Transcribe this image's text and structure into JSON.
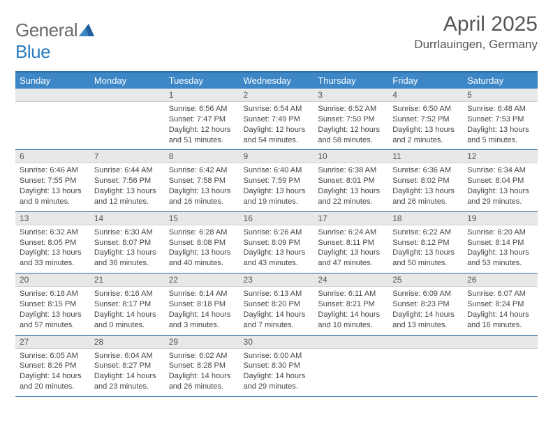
{
  "logo": {
    "word1": "General",
    "word2": "Blue"
  },
  "title": "April 2025",
  "location": "Durrlauingen, Germany",
  "colors": {
    "header_bg": "#3d87c7",
    "header_text": "#ffffff",
    "rule": "#2a6ea8",
    "dayhead_bg": "#e8e8e8",
    "body_text": "#444444",
    "logo_gray": "#6a6a6a",
    "logo_blue": "#2a7bbf",
    "page_bg": "#ffffff"
  },
  "typography": {
    "title_fontsize": 30,
    "location_fontsize": 17,
    "dayhead_fontsize": 12,
    "body_fontsize": 11,
    "header_fontsize": 13
  },
  "weekdays": [
    "Sunday",
    "Monday",
    "Tuesday",
    "Wednesday",
    "Thursday",
    "Friday",
    "Saturday"
  ],
  "weeks": [
    [
      null,
      null,
      {
        "n": "1",
        "sunrise": "6:56 AM",
        "sunset": "7:47 PM",
        "dl": "12 hours and 51 minutes."
      },
      {
        "n": "2",
        "sunrise": "6:54 AM",
        "sunset": "7:49 PM",
        "dl": "12 hours and 54 minutes."
      },
      {
        "n": "3",
        "sunrise": "6:52 AM",
        "sunset": "7:50 PM",
        "dl": "12 hours and 58 minutes."
      },
      {
        "n": "4",
        "sunrise": "6:50 AM",
        "sunset": "7:52 PM",
        "dl": "13 hours and 2 minutes."
      },
      {
        "n": "5",
        "sunrise": "6:48 AM",
        "sunset": "7:53 PM",
        "dl": "13 hours and 5 minutes."
      }
    ],
    [
      {
        "n": "6",
        "sunrise": "6:46 AM",
        "sunset": "7:55 PM",
        "dl": "13 hours and 9 minutes."
      },
      {
        "n": "7",
        "sunrise": "6:44 AM",
        "sunset": "7:56 PM",
        "dl": "13 hours and 12 minutes."
      },
      {
        "n": "8",
        "sunrise": "6:42 AM",
        "sunset": "7:58 PM",
        "dl": "13 hours and 16 minutes."
      },
      {
        "n": "9",
        "sunrise": "6:40 AM",
        "sunset": "7:59 PM",
        "dl": "13 hours and 19 minutes."
      },
      {
        "n": "10",
        "sunrise": "6:38 AM",
        "sunset": "8:01 PM",
        "dl": "13 hours and 22 minutes."
      },
      {
        "n": "11",
        "sunrise": "6:36 AM",
        "sunset": "8:02 PM",
        "dl": "13 hours and 26 minutes."
      },
      {
        "n": "12",
        "sunrise": "6:34 AM",
        "sunset": "8:04 PM",
        "dl": "13 hours and 29 minutes."
      }
    ],
    [
      {
        "n": "13",
        "sunrise": "6:32 AM",
        "sunset": "8:05 PM",
        "dl": "13 hours and 33 minutes."
      },
      {
        "n": "14",
        "sunrise": "6:30 AM",
        "sunset": "8:07 PM",
        "dl": "13 hours and 36 minutes."
      },
      {
        "n": "15",
        "sunrise": "6:28 AM",
        "sunset": "8:08 PM",
        "dl": "13 hours and 40 minutes."
      },
      {
        "n": "16",
        "sunrise": "6:26 AM",
        "sunset": "8:09 PM",
        "dl": "13 hours and 43 minutes."
      },
      {
        "n": "17",
        "sunrise": "6:24 AM",
        "sunset": "8:11 PM",
        "dl": "13 hours and 47 minutes."
      },
      {
        "n": "18",
        "sunrise": "6:22 AM",
        "sunset": "8:12 PM",
        "dl": "13 hours and 50 minutes."
      },
      {
        "n": "19",
        "sunrise": "6:20 AM",
        "sunset": "8:14 PM",
        "dl": "13 hours and 53 minutes."
      }
    ],
    [
      {
        "n": "20",
        "sunrise": "6:18 AM",
        "sunset": "8:15 PM",
        "dl": "13 hours and 57 minutes."
      },
      {
        "n": "21",
        "sunrise": "6:16 AM",
        "sunset": "8:17 PM",
        "dl": "14 hours and 0 minutes."
      },
      {
        "n": "22",
        "sunrise": "6:14 AM",
        "sunset": "8:18 PM",
        "dl": "14 hours and 3 minutes."
      },
      {
        "n": "23",
        "sunrise": "6:13 AM",
        "sunset": "8:20 PM",
        "dl": "14 hours and 7 minutes."
      },
      {
        "n": "24",
        "sunrise": "6:11 AM",
        "sunset": "8:21 PM",
        "dl": "14 hours and 10 minutes."
      },
      {
        "n": "25",
        "sunrise": "6:09 AM",
        "sunset": "8:23 PM",
        "dl": "14 hours and 13 minutes."
      },
      {
        "n": "26",
        "sunrise": "6:07 AM",
        "sunset": "8:24 PM",
        "dl": "14 hours and 16 minutes."
      }
    ],
    [
      {
        "n": "27",
        "sunrise": "6:05 AM",
        "sunset": "8:26 PM",
        "dl": "14 hours and 20 minutes."
      },
      {
        "n": "28",
        "sunrise": "6:04 AM",
        "sunset": "8:27 PM",
        "dl": "14 hours and 23 minutes."
      },
      {
        "n": "29",
        "sunrise": "6:02 AM",
        "sunset": "8:28 PM",
        "dl": "14 hours and 26 minutes."
      },
      {
        "n": "30",
        "sunrise": "6:00 AM",
        "sunset": "8:30 PM",
        "dl": "14 hours and 29 minutes."
      },
      null,
      null,
      null
    ]
  ],
  "labels": {
    "sunrise": "Sunrise:",
    "sunset": "Sunset:",
    "daylight": "Daylight:"
  }
}
